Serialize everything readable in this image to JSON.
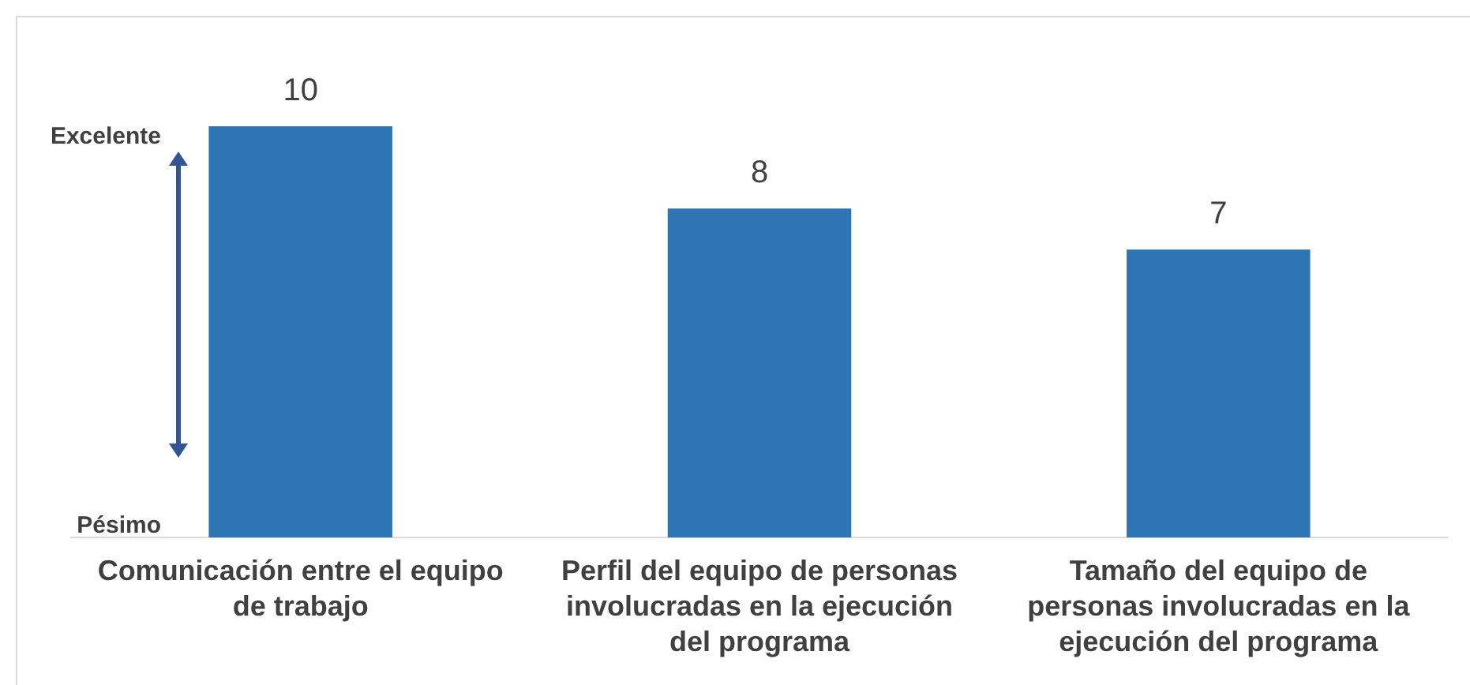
{
  "chart_data": {
    "type": "bar",
    "categories": [
      "Comunicación entre el equipo de trabajo",
      "Perfil del equipo de personas involucradas en la ejecución del programa",
      "Tamaño del equipo de personas involucradas en la ejecución del programa"
    ],
    "values": [
      10,
      8,
      7
    ],
    "color": "#2e75b6",
    "relative": false,
    "data_labels": true,
    "grid": false,
    "legend": false,
    "annotations": [
      "Excelente",
      "Pésimo"
    ]
  }
}
